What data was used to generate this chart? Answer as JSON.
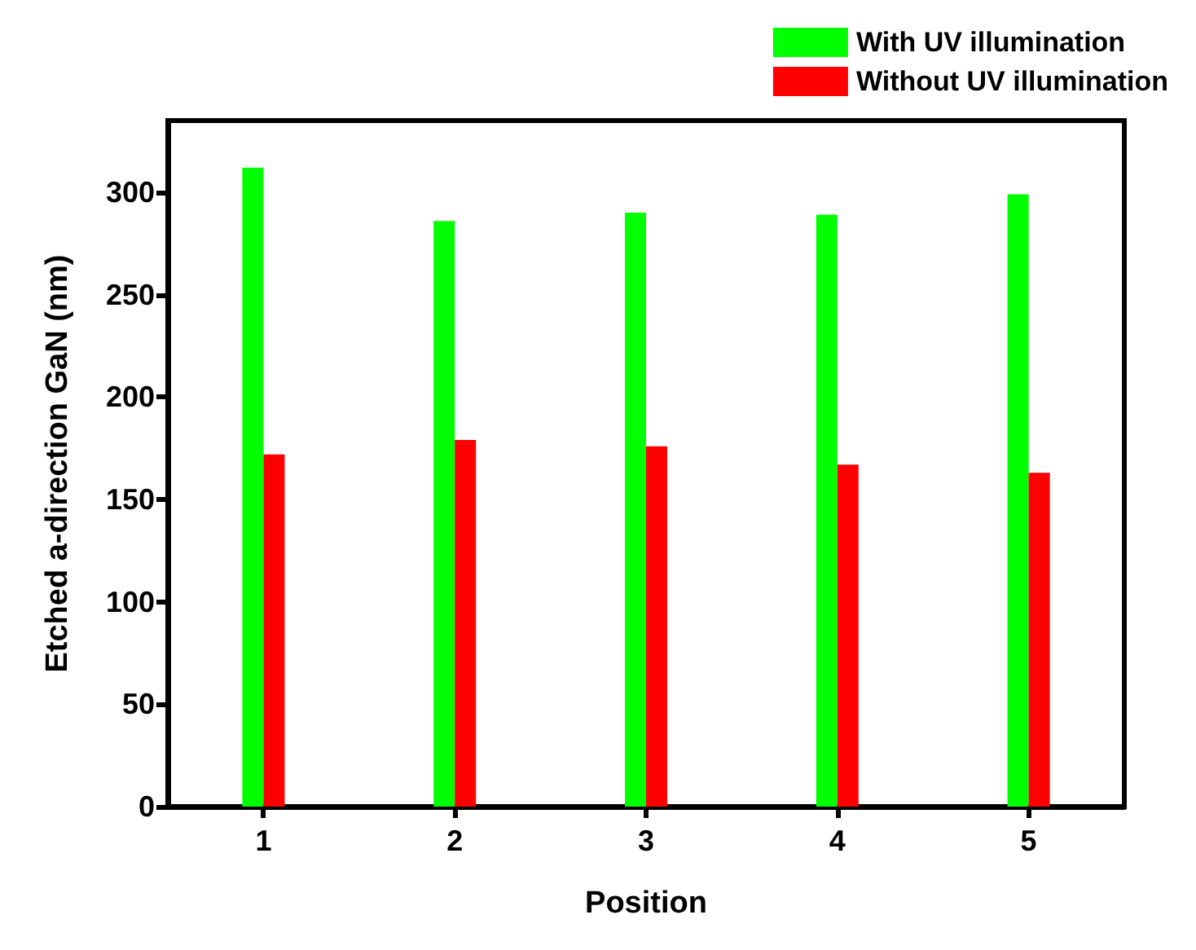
{
  "chart_data": {
    "type": "bar",
    "xlabel": "Position",
    "ylabel": "Etched a-direction GaN (nm)",
    "categories": [
      "1",
      "2",
      "3",
      "4",
      "5"
    ],
    "series": [
      {
        "name": "With UV illumination",
        "color": "#00ff00",
        "values": [
          312,
          286,
          290,
          289,
          299
        ]
      },
      {
        "name": "Without UV illumination",
        "color": "#ff0000",
        "values": [
          172,
          179,
          176,
          167,
          163
        ]
      }
    ],
    "ylim": [
      0,
      335
    ],
    "yticks": [
      0,
      50,
      100,
      150,
      200,
      250,
      300
    ],
    "grid": false,
    "legend": "top right"
  }
}
